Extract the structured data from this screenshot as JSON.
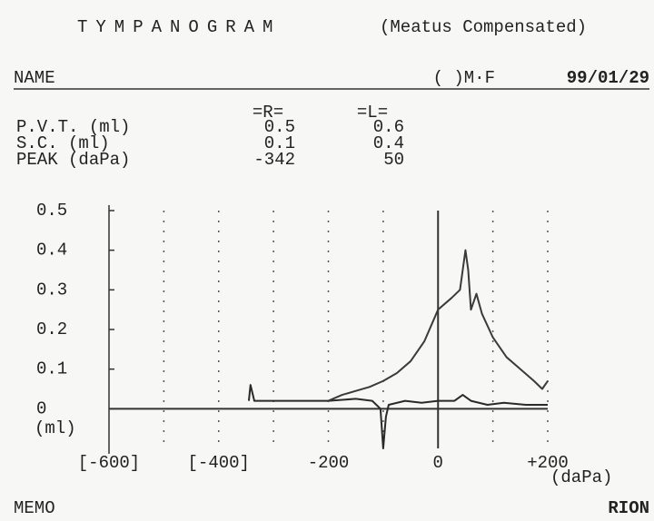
{
  "header": {
    "title": "TYMPANOGRAM",
    "subtitle": "(Meatus Compensated)",
    "name_label": "NAME",
    "sex": "( )M·F",
    "date": "99/01/29"
  },
  "table": {
    "columns": [
      "=R=",
      "=L="
    ],
    "rows": [
      {
        "label": "P.V.T. (ml)",
        "values": [
          0.5,
          0.6
        ]
      },
      {
        "label": "S.C.  (ml)",
        "values": [
          0.1,
          0.4
        ]
      },
      {
        "label": "PEAK (daPa)",
        "values": [
          -342,
          50
        ]
      }
    ]
  },
  "chart_data": {
    "type": "line",
    "y_label": "(ml)",
    "x_label": "(daPa)",
    "xlim": [
      -600,
      200
    ],
    "ylim": [
      -0.1,
      0.5
    ],
    "xticks": [
      {
        "value": -600,
        "label": "[-600]"
      },
      {
        "value": -400,
        "label": "[-400]"
      },
      -200,
      0,
      {
        "value": 200,
        "label": "+200"
      }
    ],
    "xminor": [
      -500,
      -300,
      -100,
      100
    ],
    "yticks": [
      0,
      0.1,
      0.2,
      0.3,
      0.4,
      0.5
    ],
    "grid": true,
    "series": [
      {
        "color": "#2a2a2a",
        "x": [
          -345,
          -342,
          -335,
          -300,
          -250,
          -200,
          -150,
          -120,
          -105,
          -100,
          -95,
          -90,
          -60,
          -30,
          0,
          30,
          45,
          60,
          90,
          120,
          160,
          200
        ],
        "values": [
          0.02,
          0.06,
          0.02,
          0.02,
          0.02,
          0.02,
          0.025,
          0.02,
          0.0,
          -0.1,
          -0.02,
          0.01,
          0.02,
          0.015,
          0.02,
          0.02,
          0.035,
          0.02,
          0.01,
          0.015,
          0.01,
          0.01
        ]
      },
      {
        "color": "#3a3a3a",
        "x": [
          -200,
          -175,
          -150,
          -125,
          -100,
          -75,
          -50,
          -25,
          0,
          25,
          40,
          50,
          55,
          60,
          70,
          80,
          100,
          125,
          150,
          175,
          190,
          200
        ],
        "values": [
          0.02,
          0.035,
          0.045,
          0.055,
          0.07,
          0.09,
          0.12,
          0.17,
          0.25,
          0.28,
          0.3,
          0.4,
          0.35,
          0.25,
          0.29,
          0.24,
          0.18,
          0.13,
          0.1,
          0.07,
          0.05,
          0.07
        ]
      }
    ]
  },
  "footer": {
    "memo": "MEMO",
    "brand": "RION"
  }
}
